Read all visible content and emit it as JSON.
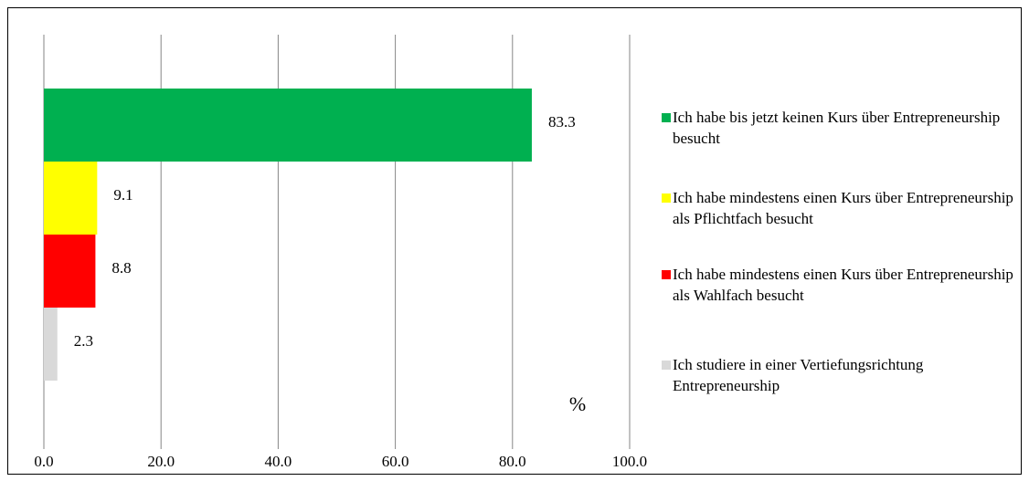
{
  "chart_data": {
    "type": "bar",
    "orientation": "horizontal",
    "annotation": "%",
    "series": [
      {
        "name": "Ich habe bis jetzt keinen Kurs über Entrepreneurship besucht",
        "color": "#00b050",
        "values": [
          83.3
        ]
      },
      {
        "name": "Ich habe mindestens einen Kurs über Entrepreneurship als Pflichtfach besucht",
        "color": "#ffff00",
        "values": [
          9.1
        ]
      },
      {
        "name": "Ich habe mindestens einen Kurs über Entrepreneurship als Wahlfach besucht",
        "color": "#ff0000",
        "values": [
          8.8
        ]
      },
      {
        "name": "Ich studiere in einer Vertiefungsrichtung Entrepreneurship",
        "color": "#d9d9d9",
        "values": [
          2.3
        ]
      }
    ],
    "xlim": [
      0,
      100
    ],
    "xticks": [
      {
        "value": 0,
        "label": "0.0"
      },
      {
        "value": 20,
        "label": "20.0"
      },
      {
        "value": 40,
        "label": "40.0"
      },
      {
        "value": 60,
        "label": "60.0"
      },
      {
        "value": 80,
        "label": "80.0"
      },
      {
        "value": 100,
        "label": "100.0"
      }
    ],
    "grid": true,
    "legend": "right"
  }
}
